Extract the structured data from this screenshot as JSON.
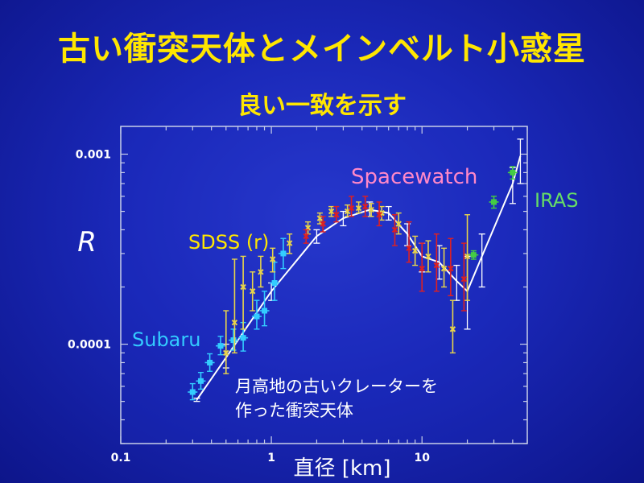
{
  "slide": {
    "title": "古い衝突天体とメインベルト小惑星",
    "subtitle": "良い一致を示す"
  },
  "chart_data": {
    "type": "scatter",
    "title": "",
    "xlabel": "直径 [km]",
    "ylabel": "R",
    "x_scale": "log",
    "y_scale": "log",
    "xlim": [
      0.1,
      50
    ],
    "ylim": [
      3e-05,
      0.0014
    ],
    "x_ticks": [
      {
        "value": 0.1,
        "label": "0.1"
      },
      {
        "value": 1,
        "label": "1"
      },
      {
        "value": 10,
        "label": "10"
      }
    ],
    "y_ticks": [
      {
        "value": 0.0001,
        "label": "0.0001"
      },
      {
        "value": 0.001,
        "label": "0.001"
      }
    ],
    "colors": {
      "Subaru": "#33ccff",
      "SDSS (r)": "#e8d44a",
      "Spacewatch": "#e02020",
      "IRAS": "#44cc44",
      "fit": "#ffffff"
    },
    "series": [
      {
        "name": "Subaru",
        "points": [
          {
            "x": 0.3,
            "y": 5.6e-05,
            "lo": 5.1e-05,
            "hi": 6.2e-05
          },
          {
            "x": 0.34,
            "y": 6.4e-05,
            "lo": 5.8e-05,
            "hi": 7.1e-05
          },
          {
            "x": 0.39,
            "y": 8e-05,
            "lo": 7.2e-05,
            "hi": 8.9e-05
          },
          {
            "x": 0.46,
            "y": 9.8e-05,
            "lo": 8.8e-05,
            "hi": 0.00011
          },
          {
            "x": 0.56,
            "y": 0.000105,
            "lo": 9.3e-05,
            "hi": 0.00012
          },
          {
            "x": 0.65,
            "y": 0.000108,
            "lo": 9.2e-05,
            "hi": 0.00013
          },
          {
            "x": 0.8,
            "y": 0.00014,
            "lo": 0.00012,
            "hi": 0.00017
          },
          {
            "x": 0.9,
            "y": 0.00015,
            "lo": 0.000125,
            "hi": 0.00019
          },
          {
            "x": 1.05,
            "y": 0.00021,
            "lo": 0.00017,
            "hi": 0.00027
          },
          {
            "x": 1.2,
            "y": 0.0003,
            "lo": 0.00025,
            "hi": 0.00036
          }
        ]
      },
      {
        "name": "SDSS (r)",
        "points": [
          {
            "x": 0.5,
            "y": 9e-05,
            "lo": 7e-05,
            "hi": 0.00015
          },
          {
            "x": 0.57,
            "y": 0.00013,
            "lo": 9e-05,
            "hi": 0.00028
          },
          {
            "x": 0.65,
            "y": 0.0002,
            "lo": 0.00012,
            "hi": 0.00029
          },
          {
            "x": 0.75,
            "y": 0.00019,
            "lo": 0.00015,
            "hi": 0.00024
          },
          {
            "x": 0.85,
            "y": 0.00024,
            "lo": 0.0002,
            "hi": 0.00029
          },
          {
            "x": 1.02,
            "y": 0.00028,
            "lo": 0.00024,
            "hi": 0.00032
          },
          {
            "x": 1.32,
            "y": 0.00034,
            "lo": 0.0003,
            "hi": 0.00038
          },
          {
            "x": 1.75,
            "y": 0.00041,
            "lo": 0.00038,
            "hi": 0.00044
          },
          {
            "x": 2.1,
            "y": 0.00046,
            "lo": 0.00043,
            "hi": 0.00049
          },
          {
            "x": 2.5,
            "y": 0.0005,
            "lo": 0.00047,
            "hi": 0.00053
          },
          {
            "x": 3.2,
            "y": 0.0005,
            "lo": 0.00047,
            "hi": 0.00054
          },
          {
            "x": 3.8,
            "y": 0.00052,
            "lo": 0.00049,
            "hi": 0.00056
          },
          {
            "x": 4.6,
            "y": 0.00051,
            "lo": 0.00047,
            "hi": 0.00055
          },
          {
            "x": 5.4,
            "y": 0.00049,
            "lo": 0.00045,
            "hi": 0.00053
          },
          {
            "x": 7.0,
            "y": 0.00043,
            "lo": 0.00038,
            "hi": 0.00049
          },
          {
            "x": 9.0,
            "y": 0.00031,
            "lo": 0.00026,
            "hi": 0.00037
          },
          {
            "x": 11.0,
            "y": 0.00029,
            "lo": 0.00024,
            "hi": 0.00035
          },
          {
            "x": 14.0,
            "y": 0.00025,
            "lo": 0.0002,
            "hi": 0.00032
          },
          {
            "x": 16.0,
            "y": 0.00012,
            "lo": 9e-05,
            "hi": 0.00017
          },
          {
            "x": 20.0,
            "y": 0.00029,
            "lo": 0.00017,
            "hi": 0.00048
          }
        ]
      },
      {
        "name": "Spacewatch",
        "points": [
          {
            "x": 1.7,
            "y": 0.00037,
            "lo": 0.00034,
            "hi": 0.0004
          },
          {
            "x": 2.2,
            "y": 0.00043,
            "lo": 0.00039,
            "hi": 0.00047
          },
          {
            "x": 2.7,
            "y": 0.00048,
            "lo": 0.00044,
            "hi": 0.00053
          },
          {
            "x": 3.4,
            "y": 0.00052,
            "lo": 0.00047,
            "hi": 0.0006
          },
          {
            "x": 4.2,
            "y": 0.00053,
            "lo": 0.00047,
            "hi": 0.0006
          },
          {
            "x": 5.2,
            "y": 0.00048,
            "lo": 0.00042,
            "hi": 0.00056
          },
          {
            "x": 6.6,
            "y": 0.0004,
            "lo": 0.00033,
            "hi": 0.00048
          },
          {
            "x": 8.2,
            "y": 0.00032,
            "lo": 0.00027,
            "hi": 0.00044
          },
          {
            "x": 10.0,
            "y": 0.00025,
            "lo": 0.00019,
            "hi": 0.00034
          },
          {
            "x": 12.5,
            "y": 0.00026,
            "lo": 0.00019,
            "hi": 0.00038
          },
          {
            "x": 15.5,
            "y": 0.00025,
            "lo": 0.00018,
            "hi": 0.00036
          },
          {
            "x": 19.0,
            "y": 0.00022,
            "lo": 0.00015,
            "hi": 0.00034
          }
        ]
      },
      {
        "name": "IRAS",
        "points": [
          {
            "x": 22.0,
            "y": 0.000295,
            "lo": 0.00028,
            "hi": 0.00031
          },
          {
            "x": 30.0,
            "y": 0.00056,
            "lo": 0.00052,
            "hi": 0.0006
          },
          {
            "x": 40.0,
            "y": 0.0008,
            "lo": 0.00074,
            "hi": 0.00086
          }
        ]
      }
    ],
    "fit_line": {
      "x": [
        0.32,
        0.5,
        1.0,
        2.0,
        3.0,
        4.5,
        6.0,
        8.0,
        10.0,
        13.0,
        17.0,
        20.0,
        25.0,
        40.0,
        45.0
      ],
      "y": [
        5.1e-05,
        8.5e-05,
        0.00019,
        0.00037,
        0.00046,
        0.00051,
        0.00049,
        0.00038,
        0.00029,
        0.00027,
        0.000215,
        0.00019,
        0.00029,
        0.0007,
        0.00098
      ],
      "err_lo": [
        5e-05,
        7.5e-05,
        0.00017,
        0.00034,
        0.00042,
        0.00047,
        0.00045,
        0.00033,
        0.00024,
        0.00022,
        0.00017,
        0.00012,
        0.0002,
        0.00055,
        0.0007
      ],
      "err_hi": [
        5.2e-05,
        0.0001,
        0.00021,
        0.0004,
        0.0005,
        0.00056,
        0.00053,
        0.00043,
        0.00034,
        0.00033,
        0.00026,
        0.00029,
        0.00038,
        0.00085,
        0.0012
      ]
    },
    "annotations": [
      {
        "key": "subaru",
        "text": "Subaru",
        "color": "#33ccff"
      },
      {
        "key": "sdss",
        "text": "SDSS (r)",
        "color": "#ffe600"
      },
      {
        "key": "spacewatch",
        "text": "Spacewatch",
        "color": "#ff88c8"
      },
      {
        "key": "iras",
        "text": "IRAS",
        "color": "#66dd66"
      },
      {
        "key": "craters_line1",
        "text": "月高地の古いクレーターを",
        "color": "#ffffff"
      },
      {
        "key": "craters_line2",
        "text": "作った衝突天体",
        "color": "#ffffff"
      }
    ]
  }
}
